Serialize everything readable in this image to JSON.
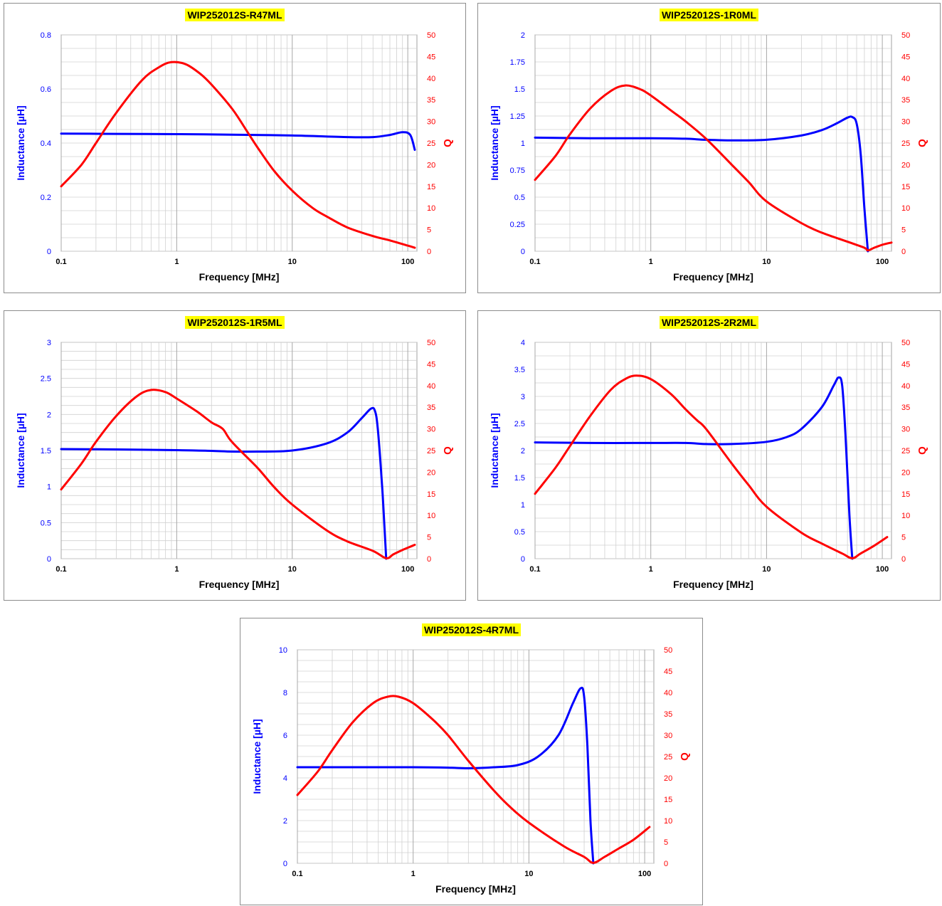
{
  "colors": {
    "inductance": "#0000ff",
    "q": "#ff0000",
    "grid": "#d0d0d0",
    "axis_text_x": "#000000"
  },
  "chart_data": [
    {
      "type": "line",
      "title": "WIP252012S-R47ML",
      "xlabel": "Frequency [MHz]",
      "ylabel": "Inductance [µH]",
      "y2label": "Q",
      "x_scale": "log",
      "xlim": [
        0.1,
        120
      ],
      "x_ticks": [
        "0.1",
        "1",
        "10",
        "100"
      ],
      "ylim": [
        0,
        0.8
      ],
      "y_ticks": [
        "0",
        "0.2",
        "0.4",
        "0.6",
        "0.8"
      ],
      "y_minor_step": 0.05,
      "y2lim": [
        0,
        50
      ],
      "y2_ticks": [
        "0",
        "5",
        "10",
        "15",
        "20",
        "25",
        "30",
        "35",
        "40",
        "45",
        "50"
      ],
      "series": [
        {
          "axis": "left",
          "color": "#0000ff",
          "x": [
            0.1,
            0.3,
            1,
            3,
            10,
            30,
            50,
            70,
            90,
            105,
            115
          ],
          "y": [
            0.435,
            0.434,
            0.433,
            0.431,
            0.428,
            0.422,
            0.422,
            0.43,
            0.44,
            0.43,
            0.375
          ]
        },
        {
          "axis": "right",
          "color": "#ff0000",
          "x": [
            0.1,
            0.15,
            0.2,
            0.3,
            0.5,
            0.7,
            0.9,
            1.2,
            1.6,
            2,
            3,
            4,
            5,
            7,
            10,
            15,
            20,
            30,
            50,
            70,
            100,
            115
          ],
          "y": [
            15,
            20,
            25,
            32,
            39.5,
            42.5,
            43.7,
            43.2,
            41,
            38.5,
            33,
            28,
            24,
            18.5,
            14,
            10,
            8,
            5.5,
            3.5,
            2.5,
            1.3,
            0.8
          ]
        }
      ]
    },
    {
      "type": "line",
      "title": "WIP252012S-1R0ML",
      "xlabel": "Frequency [MHz]",
      "ylabel": "Inductance [µH]",
      "y2label": "Q",
      "x_scale": "log",
      "xlim": [
        0.1,
        120
      ],
      "x_ticks": [
        "0.1",
        "1",
        "10",
        "100"
      ],
      "ylim": [
        0,
        2
      ],
      "y_ticks": [
        "0",
        "0.25",
        "0.5",
        "0.75",
        "1",
        "1.25",
        "1.5",
        "1.75",
        "2"
      ],
      "y_minor_step": 0.125,
      "y2lim": [
        0,
        50
      ],
      "y2_ticks": [
        "0",
        "5",
        "10",
        "15",
        "20",
        "25",
        "30",
        "35",
        "40",
        "45",
        "50"
      ],
      "series": [
        {
          "axis": "left",
          "color": "#0000ff",
          "x": [
            0.1,
            0.3,
            1,
            2,
            3,
            5,
            10,
            20,
            30,
            40,
            50,
            55,
            60,
            65,
            70,
            75
          ],
          "y": [
            1.05,
            1.045,
            1.045,
            1.04,
            1.03,
            1.025,
            1.03,
            1.07,
            1.12,
            1.18,
            1.235,
            1.24,
            1.18,
            0.9,
            0.4,
            0.0
          ]
        },
        {
          "axis": "right",
          "color": "#ff0000",
          "x": [
            0.1,
            0.15,
            0.2,
            0.3,
            0.45,
            0.6,
            0.8,
            1,
            1.5,
            2,
            3,
            5,
            7,
            10,
            20,
            30,
            50,
            70,
            75,
            85,
            100,
            120
          ],
          "y": [
            16.5,
            22,
            27,
            33,
            37,
            38.3,
            37.5,
            36,
            32.5,
            30,
            26,
            20,
            16,
            11.5,
            6.5,
            4.3,
            2.2,
            0.8,
            0.2,
            0.8,
            1.5,
            2
          ]
        }
      ]
    },
    {
      "type": "line",
      "title": "WIP252012S-1R5ML",
      "xlabel": "Frequency [MHz]",
      "ylabel": "Inductance [µH]",
      "y2label": "Q",
      "x_scale": "log",
      "xlim": [
        0.1,
        120
      ],
      "x_ticks": [
        "0.1",
        "1",
        "10",
        "100"
      ],
      "ylim": [
        0,
        3
      ],
      "y_ticks": [
        "0",
        "0.5",
        "1",
        "1.5",
        "2",
        "2.5",
        "3"
      ],
      "y_minor_step": 0.125,
      "y2lim": [
        0,
        50
      ],
      "y2_ticks": [
        "0",
        "5",
        "10",
        "15",
        "20",
        "25",
        "30",
        "35",
        "40",
        "45",
        "50"
      ],
      "series": [
        {
          "axis": "left",
          "color": "#0000ff",
          "x": [
            0.1,
            0.3,
            1,
            2,
            3,
            5,
            10,
            20,
            30,
            40,
            48,
            52,
            55,
            60,
            63,
            65
          ],
          "y": [
            1.52,
            1.515,
            1.505,
            1.495,
            1.485,
            1.485,
            1.5,
            1.6,
            1.75,
            1.95,
            2.08,
            2.05,
            1.8,
            1.0,
            0.4,
            0.0
          ]
        },
        {
          "axis": "right",
          "color": "#ff0000",
          "x": [
            0.1,
            0.15,
            0.2,
            0.3,
            0.45,
            0.6,
            0.8,
            1,
            1.5,
            2,
            2.5,
            3,
            5,
            7,
            10,
            20,
            30,
            50,
            65,
            75,
            90,
            115
          ],
          "y": [
            16,
            22,
            27,
            33,
            37.5,
            39,
            38.5,
            37,
            34,
            31.5,
            30,
            27,
            21,
            16.5,
            12.5,
            6.5,
            4,
            1.8,
            0.1,
            1,
            2,
            3.2
          ]
        }
      ]
    },
    {
      "type": "line",
      "title": "WIP252012S-2R2ML",
      "xlabel": "Frequency [MHz]",
      "ylabel": "Inductance [µH]",
      "y2label": "Q",
      "x_scale": "log",
      "xlim": [
        0.1,
        120
      ],
      "x_ticks": [
        "0.1",
        "1",
        "10",
        "100"
      ],
      "ylim": [
        0,
        4
      ],
      "y_ticks": [
        "0",
        "0.5",
        "1",
        "1.5",
        "2",
        "2.5",
        "3",
        "3.5",
        "4"
      ],
      "y_minor_step": 0.25,
      "y2lim": [
        0,
        50
      ],
      "y2_ticks": [
        "0",
        "5",
        "10",
        "15",
        "20",
        "25",
        "30",
        "35",
        "40",
        "45",
        "50"
      ],
      "series": [
        {
          "axis": "left",
          "color": "#0000ff",
          "x": [
            0.1,
            0.3,
            1,
            2,
            3,
            5,
            10,
            15,
            20,
            30,
            38,
            42,
            45,
            48,
            52,
            55
          ],
          "y": [
            2.15,
            2.14,
            2.14,
            2.14,
            2.12,
            2.12,
            2.16,
            2.25,
            2.4,
            2.8,
            3.2,
            3.35,
            3.2,
            2.3,
            0.8,
            0.0
          ]
        },
        {
          "axis": "right",
          "color": "#ff0000",
          "x": [
            0.1,
            0.15,
            0.2,
            0.3,
            0.45,
            0.6,
            0.75,
            1,
            1.5,
            2,
            2.5,
            3,
            5,
            7,
            10,
            20,
            30,
            45,
            55,
            65,
            85,
            110
          ],
          "y": [
            15,
            21,
            26,
            33,
            39,
            41.5,
            42.3,
            41.5,
            38,
            34.5,
            32,
            30,
            22,
            17,
            12,
            6,
            3.5,
            1.2,
            0.1,
            1.2,
            3,
            5
          ]
        }
      ]
    },
    {
      "type": "line",
      "title": "WIP252012S-4R7ML",
      "xlabel": "Frequency [MHz]",
      "ylabel": "Inductance [µH]",
      "y2label": "Q",
      "x_scale": "log",
      "xlim": [
        0.1,
        120
      ],
      "x_ticks": [
        "0.1",
        "1",
        "10",
        "100"
      ],
      "ylim": [
        0,
        10
      ],
      "y_ticks": [
        "0",
        "2",
        "4",
        "6",
        "8",
        "10"
      ],
      "y_minor_step": 0.5,
      "y2lim": [
        0,
        50
      ],
      "y2_ticks": [
        "0",
        "5",
        "10",
        "15",
        "20",
        "25",
        "30",
        "35",
        "40",
        "45",
        "50"
      ],
      "series": [
        {
          "axis": "left",
          "color": "#0000ff",
          "x": [
            0.1,
            0.3,
            1,
            2,
            3,
            5,
            8,
            12,
            18,
            24,
            28,
            30,
            32,
            34,
            36
          ],
          "y": [
            4.5,
            4.5,
            4.5,
            4.48,
            4.45,
            4.5,
            4.6,
            5.0,
            6.0,
            7.5,
            8.2,
            7.8,
            5.5,
            2.0,
            0.0
          ]
        },
        {
          "axis": "right",
          "color": "#ff0000",
          "x": [
            0.1,
            0.15,
            0.2,
            0.3,
            0.45,
            0.6,
            0.75,
            1,
            1.5,
            2,
            3,
            5,
            7,
            10,
            20,
            30,
            36,
            45,
            60,
            80,
            110
          ],
          "y": [
            16,
            21.5,
            26.5,
            33,
            37.5,
            39,
            39,
            37.5,
            33.5,
            30,
            24,
            17,
            13,
            9.5,
            4,
            1.5,
            0.1,
            1.5,
            3.5,
            5.5,
            8.5
          ]
        }
      ]
    }
  ]
}
